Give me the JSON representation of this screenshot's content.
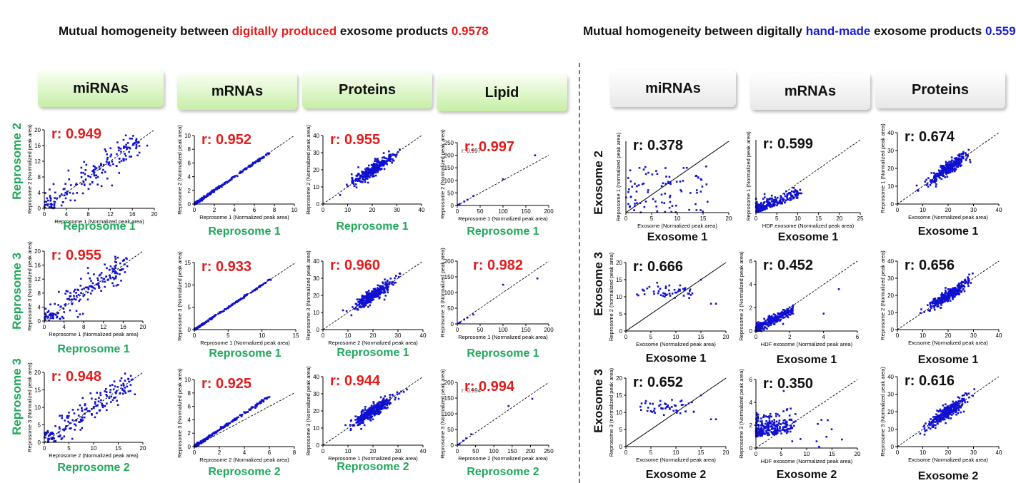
{
  "headers": {
    "left": {
      "prefix": "Mutual homogeneity between ",
      "highlight": "digitally produced",
      "suffix": " exosome products ",
      "value": "0.9578"
    },
    "right": {
      "prefix": "Mutual homogeneity between digitally ",
      "highlight": "hand-made",
      "suffix": " exosome products ",
      "value": "0.559"
    }
  },
  "colors": {
    "red": "#e41b1b",
    "blue": "#1a1ad8",
    "green_text": "#1fa85b",
    "point": "#1010d0"
  },
  "columns": {
    "left": [
      "miRNAs",
      "mRNAs",
      "Proteins",
      "Lipid"
    ],
    "right": [
      "miRNAs",
      "mRNAs",
      "Proteins"
    ]
  },
  "row_labels": {
    "left": [
      "Reprosome 2",
      "Reprosome 3",
      "Reprosome 3"
    ],
    "right": [
      "Exosome 2",
      "Exosome 3",
      "Exosome 3"
    ]
  },
  "chart_data": [
    {
      "id": "L-r1-miRNAs",
      "type": "scatter",
      "r_label": "r: 0.949",
      "xlabel": "Reprosome 1 (Normalized peak area)",
      "ylabel": "Reprosome 2 (Normalized peak area)",
      "big_xlabel": "Reprosome 1",
      "xlim": [
        0,
        20
      ],
      "ylim": [
        0,
        20
      ],
      "xticks": [
        0,
        4,
        8,
        12,
        16,
        20
      ],
      "yticks": [
        0,
        4,
        8,
        12,
        16,
        20
      ],
      "diagonal": "dashed"
    },
    {
      "id": "L-r1-mRNAs",
      "type": "scatter",
      "r_label": "r: 0.952",
      "xlabel": "Reprosome 1 (Normalized peak area)",
      "ylabel": "Reprosome 2 (Normalized peak area)",
      "big_xlabel": "Reprosome 1",
      "xlim": [
        0,
        10
      ],
      "ylim": [
        0,
        10
      ],
      "xticks": [
        0,
        2,
        4,
        6,
        8,
        10
      ],
      "yticks": [
        0,
        2,
        4,
        6,
        8,
        10
      ],
      "diagonal": "dashed"
    },
    {
      "id": "L-r1-Proteins",
      "type": "scatter",
      "r_label": "r: 0.955",
      "xlabel": "",
      "ylabel": "Reprosome 2 (Normalized peak area)",
      "big_xlabel": "Reprosome 1",
      "xlim": [
        0,
        40
      ],
      "ylim": [
        0,
        40
      ],
      "xticks": [
        0,
        10,
        20,
        30,
        40
      ],
      "yticks": [
        0,
        10,
        20,
        30,
        40
      ],
      "diagonal": "dashed"
    },
    {
      "id": "L-r1-Lipid",
      "type": "scatter",
      "r_label": "r: 0.997",
      "small_label": "r: 0.997",
      "xlabel": "Reprosome 1 (Normalized peak area)",
      "ylabel": "Reprosome 2 (Normalized peak area)",
      "big_xlabel": "Reprosome 1",
      "xlim": [
        0,
        200
      ],
      "ylim": [
        0,
        250
      ],
      "xticks": [
        0,
        50,
        100,
        150,
        200
      ],
      "yticks": [
        0,
        50,
        100,
        150,
        200,
        250
      ],
      "diagonal": "dashed",
      "points": [
        [
          2,
          3
        ],
        [
          5,
          6
        ],
        [
          15,
          16
        ],
        [
          22,
          23
        ],
        [
          35,
          38
        ],
        [
          100,
          105
        ],
        [
          170,
          200
        ]
      ]
    },
    {
      "id": "L-r2-miRNAs",
      "type": "scatter",
      "r_label": "r: 0.955",
      "xlabel": "Reprosome 1 (Normalized peak area)",
      "ylabel": "Reprosome 3 (Normalized peak area)",
      "big_xlabel": "Reprosome 1",
      "xlim": [
        0,
        20
      ],
      "ylim": [
        0,
        20
      ],
      "xticks": [
        0,
        4,
        8,
        12,
        16,
        20
      ],
      "yticks": [
        0,
        4,
        8,
        12,
        16,
        20
      ],
      "diagonal": "dashed"
    },
    {
      "id": "L-r2-mRNAs",
      "type": "scatter",
      "r_label": "r: 0.933",
      "xlabel": "Reprosome 1 (Normalized peak area)",
      "ylabel": "Reprosome 3 (Normalized peak area)",
      "big_xlabel": "Reprosome 1",
      "xlim": [
        0,
        15
      ],
      "ylim": [
        0,
        15
      ],
      "xticks": [
        0,
        5,
        10,
        15
      ],
      "yticks": [
        0,
        5,
        10,
        15
      ],
      "diagonal": "dashed"
    },
    {
      "id": "L-r2-Proteins",
      "type": "scatter",
      "r_label": "r: 0.960",
      "xlabel": "Reprosome 2 (Normalized peak area)",
      "ylabel": "Reprosome 3 (Normalized peak area)",
      "big_xlabel": "Reprosome 1",
      "xlim": [
        0,
        40
      ],
      "ylim": [
        0,
        40
      ],
      "xticks": [
        0,
        10,
        20,
        30,
        40
      ],
      "yticks": [
        0,
        10,
        20,
        30,
        40
      ],
      "diagonal": "dashed"
    },
    {
      "id": "L-r2-Lipid",
      "type": "scatter",
      "r_label": "r: 0.982",
      "xlabel": "Reprosome 1 (Normalized peak area)",
      "ylabel": "Reprosome 3 (Normalized peak area)",
      "big_xlabel": "Reprosome 1",
      "xlim": [
        0,
        200
      ],
      "ylim": [
        0,
        200
      ],
      "xticks": [
        0,
        50,
        100,
        150,
        200
      ],
      "yticks": [
        0,
        50,
        100,
        150,
        200
      ],
      "diagonal": "dashed",
      "points": [
        [
          3,
          2
        ],
        [
          6,
          5
        ],
        [
          15,
          14
        ],
        [
          22,
          20
        ],
        [
          35,
          30
        ],
        [
          100,
          125
        ],
        [
          175,
          145
        ]
      ]
    },
    {
      "id": "L-r3-miRNAs",
      "type": "scatter",
      "r_label": "r: 0.948",
      "xlabel": "Reprosome 2 (Normalized peak area)",
      "ylabel": "Reprosome 3 (Normalized peak area)",
      "big_xlabel": "Reprosome 2",
      "xlim": [
        0,
        20
      ],
      "ylim": [
        0,
        20
      ],
      "xticks": [
        0,
        5,
        10,
        15,
        20
      ],
      "yticks": [
        0,
        5,
        10,
        15,
        20
      ],
      "diagonal": "dashed"
    },
    {
      "id": "L-r3-mRNAs",
      "type": "scatter",
      "r_label": "r: 0.925",
      "xlabel": "Reprosome 2 (Normalized peak area)",
      "ylabel": "Reprosome 3 (Normalized peak area)",
      "big_xlabel": "Reprosome 2",
      "xlim": [
        0,
        8
      ],
      "ylim": [
        0,
        10
      ],
      "xticks": [
        0,
        2,
        4,
        6,
        8
      ],
      "yticks": [
        0,
        2,
        4,
        6,
        8,
        10
      ],
      "diagonal": "dashed"
    },
    {
      "id": "L-r3-Proteins",
      "type": "scatter",
      "r_label": "r: 0.944",
      "xlabel": "Reprosome 1 (Normalized peak area)",
      "ylabel": "Reprosome 3 (Normalized peak area)",
      "big_xlabel": "Reprosome 2",
      "xlim": [
        0,
        40
      ],
      "ylim": [
        0,
        40
      ],
      "xticks": [
        0,
        10,
        20,
        30,
        40
      ],
      "yticks": [
        0,
        10,
        20,
        30,
        40
      ],
      "diagonal": "dashed"
    },
    {
      "id": "L-r3-Lipid",
      "type": "scatter",
      "r_label": "r: 0.994",
      "small_label": "r: 0.994",
      "xlabel": "Reprosome 2 (Normalized peak area)",
      "ylabel": "Reprosome 3 (Normalized peak area)",
      "big_xlabel": "Reprosome 2",
      "xlim": [
        0,
        250
      ],
      "ylim": [
        0,
        200
      ],
      "xticks": [
        0,
        50,
        100,
        150,
        200,
        250
      ],
      "yticks": [
        0,
        50,
        100,
        150,
        200
      ],
      "diagonal": "dashed",
      "points": [
        [
          2,
          2
        ],
        [
          6,
          5
        ],
        [
          16,
          14
        ],
        [
          24,
          22
        ],
        [
          38,
          35
        ],
        [
          140,
          125
        ],
        [
          205,
          148
        ]
      ]
    },
    {
      "id": "R-r1-miRNAs",
      "type": "scatter",
      "r_label": "r: 0.378",
      "xlabel": "Exosome (Normalized peak area)",
      "ylabel": "Reprosome 1 (normalized peak area)",
      "big_xlabel": "Exosome 1",
      "xlim": [
        0,
        20
      ],
      "ylim": [
        0,
        20
      ],
      "xticks": [
        0,
        5,
        10,
        15,
        20
      ],
      "yticks": [],
      "diagonal": "solid"
    },
    {
      "id": "R-r1-mRNAs",
      "type": "scatter",
      "r_label": "r: 0.599",
      "xlabel": "HDF exosome (Normalized peak area)",
      "ylabel": "Reprosome 1 (Normalized peak area)",
      "big_xlabel": "Exosome 1",
      "xlim": [
        0,
        25
      ],
      "ylim": [
        0,
        25
      ],
      "xticks": [
        0,
        5,
        10,
        15,
        20,
        25
      ],
      "yticks": [],
      "diagonal": "dashed"
    },
    {
      "id": "R-r1-Proteins",
      "type": "scatter",
      "r_label": "r: 0.674",
      "xlabel": "Exosome (Normalized peak area)",
      "ylabel": "Reprosome 1 (Normalized peak area)",
      "big_xlabel": "Exosome 1",
      "xlim": [
        0,
        40
      ],
      "ylim": [
        0,
        40
      ],
      "xticks": [
        0,
        10,
        20,
        30,
        40
      ],
      "yticks": [
        0,
        10,
        20,
        30,
        40
      ],
      "diagonal": "dashed"
    },
    {
      "id": "R-r2-miRNAs",
      "type": "scatter",
      "r_label": "r: 0.666",
      "xlabel": "Exosome (Normalized peak area)",
      "ylabel": "Reprosome 2 (normalized peak area)",
      "big_xlabel": "Exosome 1",
      "xlim": [
        0,
        20
      ],
      "ylim": [
        0,
        20
      ],
      "xticks": [
        0,
        5,
        10,
        15,
        20
      ],
      "yticks": [
        0,
        5,
        10,
        15,
        20
      ],
      "diagonal": "solid"
    },
    {
      "id": "R-r2-mRNAs",
      "type": "scatter",
      "r_label": "r: 0.452",
      "xlabel": "HDF exosome (Normalized peak area)",
      "ylabel": "Reprosome 2 (Normalized peak area)",
      "big_xlabel": "Exosome 1",
      "xlim": [
        0,
        6
      ],
      "ylim": [
        0,
        6
      ],
      "xticks": [
        0,
        2,
        4,
        6
      ],
      "yticks": [
        0,
        2,
        4,
        6
      ],
      "diagonal": "dashed"
    },
    {
      "id": "R-r2-Proteins",
      "type": "scatter",
      "r_label": "r: 0.656",
      "xlabel": "Exosome (Normalized peak area)",
      "ylabel": "Reprosome 2 (Normalized peak area)",
      "big_xlabel": "Exosome 1",
      "xlim": [
        0,
        40
      ],
      "ylim": [
        0,
        40
      ],
      "xticks": [
        0,
        10,
        20,
        30,
        40
      ],
      "yticks": [
        0,
        10,
        20,
        30,
        40
      ],
      "diagonal": "dashed"
    },
    {
      "id": "R-r3-miRNAs",
      "type": "scatter",
      "r_label": "r: 0.652",
      "xlabel": "Exosome (Normalized peak area)",
      "ylabel": "Reprosome 3 (normalized peak area)",
      "big_xlabel": "Exosome 2",
      "xlim": [
        0,
        20
      ],
      "ylim": [
        0,
        20
      ],
      "xticks": [
        0,
        5,
        10,
        15,
        20
      ],
      "yticks": [
        0,
        5,
        10,
        15,
        20
      ],
      "diagonal": "solid"
    },
    {
      "id": "R-r3-mRNAs",
      "type": "scatter",
      "r_label": "r: 0.350",
      "xlabel": "HDF exosome (Normalized peak area)",
      "ylabel": "Reprosome 3 (Normalized peak area)",
      "big_xlabel": "Exosome 2",
      "xlim": [
        0,
        20
      ],
      "ylim": [
        0,
        6
      ],
      "xticks": [
        0,
        5,
        10,
        15,
        20
      ],
      "yticks": [
        0,
        2,
        4,
        6
      ],
      "diagonal": "dashed"
    },
    {
      "id": "R-r3-Proteins",
      "type": "scatter",
      "r_label": "r: 0.616",
      "xlabel": "Exosome (Normalized peak area)",
      "ylabel": "Reprosome 3 (Normalized peak area)",
      "big_xlabel": "Exosome 2",
      "xlim": [
        0,
        40
      ],
      "ylim": [
        0,
        40
      ],
      "xticks": [
        0,
        10,
        20,
        30,
        40
      ],
      "yticks": [
        0,
        10,
        20,
        30,
        40
      ],
      "diagonal": "dashed"
    }
  ]
}
